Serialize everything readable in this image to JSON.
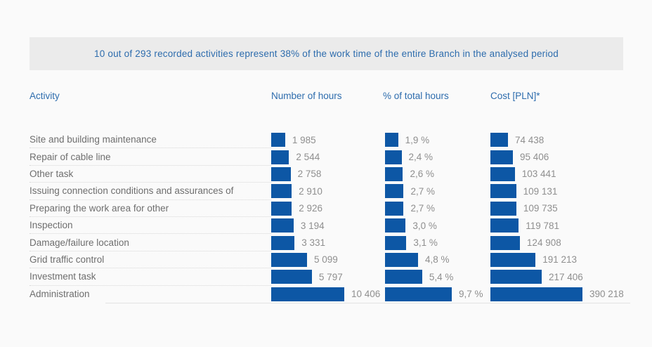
{
  "banner": {
    "text": "10 out of 293 recorded activities represent 38% of the work time of the entire Branch in the analysed period"
  },
  "columns": {
    "activity": "Activity",
    "hours": "Number of hours",
    "percent": "% of total hours",
    "cost": "Cost [PLN]*"
  },
  "colors": {
    "bar": "#0d57a5",
    "heading_blue": "#2d6cad",
    "label_gray": "#6e6e6e",
    "value_gray": "#8f8f8f",
    "banner_bg": "#ebebeb",
    "page_bg": "#fafafa"
  },
  "rows": [
    {
      "activity": "Site and building maintenance",
      "hours": 1985,
      "hours_label": "1 985",
      "percent": 1.9,
      "percent_label": "1,9 %",
      "cost": 74438,
      "cost_label": "74 438"
    },
    {
      "activity": "Repair of cable line",
      "hours": 2544,
      "hours_label": "2 544",
      "percent": 2.4,
      "percent_label": "2,4 %",
      "cost": 95406,
      "cost_label": "95 406"
    },
    {
      "activity": "Other task",
      "hours": 2758,
      "hours_label": "2 758",
      "percent": 2.6,
      "percent_label": "2,6 %",
      "cost": 103441,
      "cost_label": "103 441"
    },
    {
      "activity": "Issuing connection conditions and assurances of",
      "hours": 2910,
      "hours_label": "2 910",
      "percent": 2.7,
      "percent_label": "2,7 %",
      "cost": 109131,
      "cost_label": "109 131"
    },
    {
      "activity": "Preparing the work area for other",
      "hours": 2926,
      "hours_label": "2 926",
      "percent": 2.7,
      "percent_label": "2,7 %",
      "cost": 109735,
      "cost_label": "109 735"
    },
    {
      "activity": "Inspection",
      "hours": 3194,
      "hours_label": "3 194",
      "percent": 3.0,
      "percent_label": "3,0 %",
      "cost": 119781,
      "cost_label": "119 781"
    },
    {
      "activity": "Damage/failure location",
      "hours": 3331,
      "hours_label": "3 331",
      "percent": 3.1,
      "percent_label": "3,1 %",
      "cost": 124908,
      "cost_label": "124 908"
    },
    {
      "activity": "Grid traffic control",
      "hours": 5099,
      "hours_label": "5 099",
      "percent": 4.8,
      "percent_label": "4,8 %",
      "cost": 191213,
      "cost_label": "191 213"
    },
    {
      "activity": "Investment task",
      "hours": 5797,
      "hours_label": "5 797",
      "percent": 5.4,
      "percent_label": "5,4 %",
      "cost": 217406,
      "cost_label": "217 406"
    },
    {
      "activity": "Administration",
      "hours": 10406,
      "hours_label": "10 406",
      "percent": 9.7,
      "percent_label": "9,7 %",
      "cost": 390218,
      "cost_label": "390 218"
    }
  ],
  "chart_data": {
    "type": "bar",
    "orientation": "horizontal",
    "title": "10 out of 293 recorded activities represent 38% of the work time of the entire Branch in the analysed period",
    "categories": [
      "Site and building maintenance",
      "Repair of cable line",
      "Other task",
      "Issuing connection conditions and assurances of",
      "Preparing the work area for other",
      "Inspection",
      "Damage/failure location",
      "Grid traffic control",
      "Investment task",
      "Administration"
    ],
    "series": [
      {
        "name": "Number of hours",
        "values": [
          1985,
          2544,
          2758,
          2910,
          2926,
          3194,
          3331,
          5099,
          5797,
          10406
        ]
      },
      {
        "name": "% of total hours",
        "values": [
          1.9,
          2.4,
          2.6,
          2.7,
          2.7,
          3.0,
          3.1,
          4.8,
          5.4,
          9.7
        ]
      },
      {
        "name": "Cost [PLN]*",
        "values": [
          74438,
          95406,
          103441,
          109131,
          109735,
          119781,
          124908,
          191213,
          217406,
          390218
        ]
      }
    ],
    "grid": false,
    "legend_position": "column-headers",
    "value_labels": true,
    "bar_color": "#0d57a5"
  }
}
